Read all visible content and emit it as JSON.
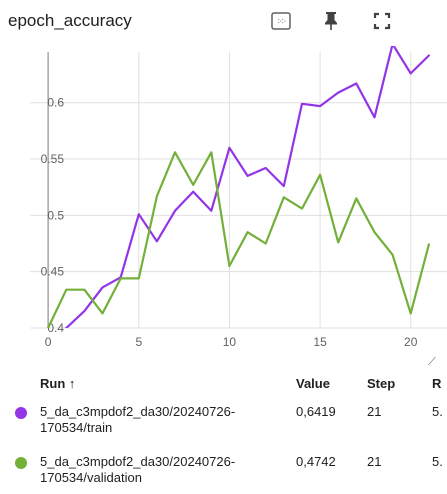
{
  "header": {
    "title": "epoch_accuracy",
    "icons": [
      "data-selection-icon",
      "pin-icon",
      "fullscreen-icon"
    ]
  },
  "colors": {
    "train": "#9334e6",
    "validation": "#72b03a",
    "grid": "#e0e0e0",
    "zero_line": "#a6a6a6"
  },
  "chart_data": {
    "type": "line",
    "title": "epoch_accuracy",
    "xlim": [
      -1,
      22
    ],
    "ylim": [
      0.4,
      0.645
    ],
    "grid": true,
    "xticks": [
      0,
      5,
      10,
      15,
      20
    ],
    "yticks": [
      0.4,
      0.45,
      0.5,
      0.55,
      0.6
    ],
    "ytick_labels": [
      "0.4",
      "0.45",
      "0.5",
      "0.55",
      "0.6"
    ],
    "series": [
      {
        "name": "5_da_c3mpdof2_da30/20240726-170534/train",
        "color_key": "train",
        "x": [
          0,
          1,
          2,
          3,
          4,
          5,
          6,
          7,
          8,
          9,
          10,
          11,
          12,
          13,
          14,
          15,
          16,
          17,
          18,
          19,
          20,
          21
        ],
        "y": [
          0.388,
          0.4,
          0.415,
          0.436,
          0.445,
          0.501,
          0.477,
          0.504,
          0.521,
          0.504,
          0.56,
          0.535,
          0.542,
          0.526,
          0.599,
          0.597,
          0.609,
          0.617,
          0.587,
          0.652,
          0.626,
          0.6419
        ]
      },
      {
        "name": "5_da_c3mpdof2_da30/20240726-170534/validation",
        "color_key": "validation",
        "x": [
          0,
          1,
          2,
          3,
          4,
          5,
          6,
          7,
          8,
          9,
          10,
          11,
          12,
          13,
          14,
          15,
          16,
          17,
          18,
          19,
          20,
          21
        ],
        "y": [
          0.4,
          0.434,
          0.434,
          0.413,
          0.444,
          0.444,
          0.517,
          0.556,
          0.527,
          0.556,
          0.455,
          0.485,
          0.475,
          0.516,
          0.506,
          0.536,
          0.476,
          0.515,
          0.485,
          0.465,
          0.413,
          0.4742
        ]
      }
    ]
  },
  "table": {
    "headers": {
      "run": "Run ↑",
      "value": "Value",
      "step": "Step",
      "relative": "R"
    },
    "rows": [
      {
        "run_line1": "5_da_c3mpdof2_da30/20240726-",
        "run_line2": "170534/train",
        "value": "0,6419",
        "step": "21",
        "relative": "5."
      },
      {
        "run_line1": "5_da_c3mpdof2_da30/20240726-",
        "run_line2": "170534/validation",
        "value": "0,4742",
        "step": "21",
        "relative": "5."
      }
    ]
  }
}
